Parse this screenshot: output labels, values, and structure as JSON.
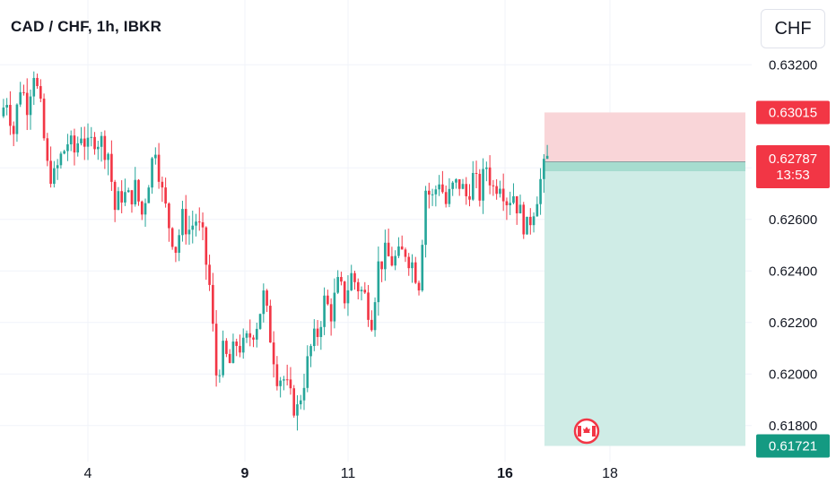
{
  "header": {
    "title": "CAD / CHF, 1h, IBKR",
    "currency_button": "CHF"
  },
  "colors": {
    "up": "#26a69a",
    "down": "#f23645",
    "stop_zone": "#f9d5d8",
    "target_zone": "#cfece6",
    "stop_tag": "#f23645",
    "target_tag": "#149a82",
    "entry_tag": "#787b86",
    "grid": "#f0f3fa"
  },
  "chart_data": {
    "type": "candlestick",
    "symbol": "CAD / CHF",
    "timeframe": "1h",
    "source": "IBKR",
    "price_axis": {
      "range": [
        0.6166,
        0.6326
      ],
      "ticks": [
        "0.61800",
        "0.62000",
        "0.62200",
        "0.62400",
        "0.62600",
        "0.63200"
      ]
    },
    "time_axis": {
      "ticks": [
        {
          "label": "4",
          "bold": false
        },
        {
          "label": "9",
          "bold": true
        },
        {
          "label": "11",
          "bold": false
        },
        {
          "label": "16",
          "bold": true
        },
        {
          "label": "18",
          "bold": false
        }
      ]
    },
    "close_path": [
      0.63,
      0.6307,
      0.6294,
      0.6312,
      0.6305,
      0.6318,
      0.6302,
      0.628,
      0.6276,
      0.6284,
      0.629,
      0.6286,
      0.6294,
      0.6287,
      0.6292,
      0.629,
      0.6286,
      0.6264,
      0.627,
      0.6268,
      0.6272,
      0.6262,
      0.6276,
      0.6289,
      0.627,
      0.6258,
      0.6249,
      0.626,
      0.6256,
      0.626,
      0.6252,
      0.6234,
      0.62,
      0.6208,
      0.6204,
      0.6212,
      0.621,
      0.6215,
      0.622,
      0.623,
      0.6215,
      0.62,
      0.6198,
      0.619,
      0.6186,
      0.6198,
      0.621,
      0.6216,
      0.6228,
      0.6224,
      0.6234,
      0.623,
      0.6238,
      0.6234,
      0.623,
      0.6222,
      0.6242,
      0.6246,
      0.6244,
      0.6245,
      0.6248,
      0.6243,
      0.6236,
      0.6272,
      0.6268,
      0.6276,
      0.6266,
      0.6272,
      0.6274,
      0.6269,
      0.6276,
      0.627,
      0.6281,
      0.6272,
      0.6276,
      0.6268,
      0.627,
      0.6262,
      0.6256,
      0.6265,
      0.6275,
      0.6283
    ],
    "position": {
      "stop": "0.63015",
      "entry": "0.62823",
      "target": "0.61721"
    },
    "last_price": {
      "value": "0.62787",
      "countdown": "13:53"
    },
    "event_marker": "Canada flag"
  }
}
